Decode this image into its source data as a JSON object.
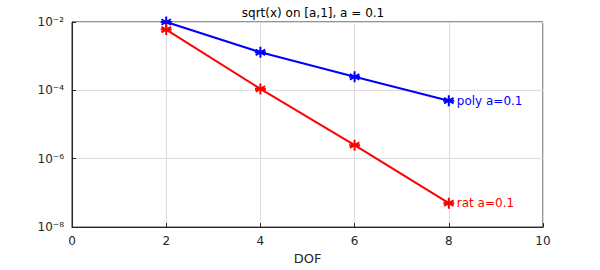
{
  "chart_data": {
    "type": "line",
    "title": "sqrt(x) on [a,1], a = 0.1",
    "x_label": "DOF",
    "log": "y",
    "grid": true,
    "marker": "asterisk",
    "xlim": [
      0,
      10
    ],
    "xticks": [
      0,
      2,
      4,
      6,
      8,
      10
    ],
    "ylim": [
      1e-08,
      0.01
    ],
    "yticks": [
      {
        "value": 1e-08,
        "label": "10⁻⁸"
      },
      {
        "value": 1e-06,
        "label": "10⁻⁶"
      },
      {
        "value": 0.0001,
        "label": "10⁻⁴"
      },
      {
        "value": 0.01,
        "label": "10⁻²"
      }
    ],
    "x": [
      2,
      4,
      6,
      8
    ],
    "series": [
      {
        "name": "poly a=0.1",
        "color": "#0000ff",
        "values": [
          0.01,
          0.0013,
          0.00025,
          5e-05
        ]
      },
      {
        "name": "rat a=0.1",
        "color": "#ff0000",
        "values": [
          0.006,
          0.00011,
          2.5e-06,
          5e-08
        ]
      }
    ]
  }
}
